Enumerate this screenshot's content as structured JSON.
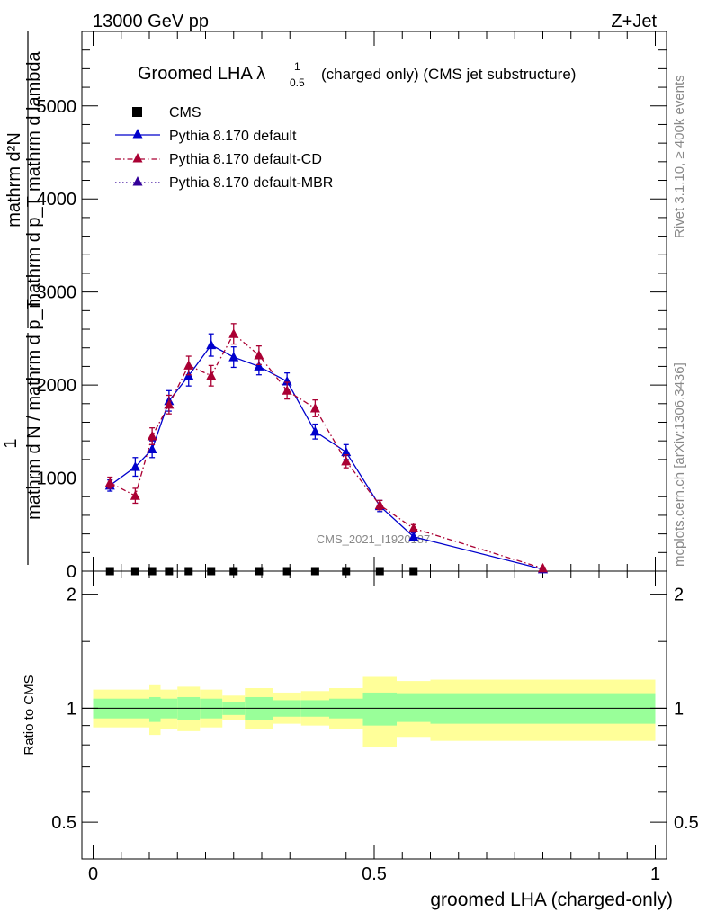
{
  "header": {
    "left": "13000 GeV pp",
    "right": "Z+Jet"
  },
  "title": {
    "main": "Groomed LHA λ",
    "sup": "1",
    "sub": "0.5",
    "rest": "(charged only) (CMS jet substructure)"
  },
  "side_labels": {
    "rivet": "Rivet 3.1.10, ≥ 400k events",
    "mcplots": "mcplots.cern.ch [arXiv:1306.3436]"
  },
  "watermark": "CMS_2021_I1920187",
  "axes": {
    "ylabel_top": "mathrm d²N",
    "ylabel_top2": "mathrm d p_T mathrm d lambda",
    "ylabel_one": "1",
    "ylabel_bottom": "mathrm d N / mathrm d p_T",
    "yticks": [
      "0",
      "1000",
      "2000",
      "3000",
      "4000",
      "5000"
    ],
    "ratio_ylabel": "Ratio to CMS",
    "ratio_yticks": [
      "0.5",
      "1",
      "2"
    ],
    "xticks": [
      "0",
      "0.5",
      "1"
    ],
    "xlabel": "groomed LHA (charged-only)"
  },
  "legend": [
    {
      "name": "CMS",
      "style": "square"
    },
    {
      "name": "Pythia 8.170 default",
      "style": "solid"
    },
    {
      "name": "Pythia 8.170 default-CD",
      "style": "dashdot"
    },
    {
      "name": "Pythia 8.170 default-MBR",
      "style": "dotted"
    }
  ],
  "chart_data": {
    "type": "line",
    "title": "Groomed LHA λ^1_0.5 (charged only) (CMS jet substructure)",
    "xlabel": "groomed LHA (charged-only)",
    "ylabel": "1 / (mathrm d N / mathrm d p_T) · mathrm d²N / (mathrm d p_T mathrm d lambda)",
    "xlim": [
      -0.02,
      1.02
    ],
    "ylim": [
      0,
      5800
    ],
    "ratio_ylim": [
      0.4,
      2.3
    ],
    "colors": {
      "default": "#0000cc",
      "cd": "#aa0033",
      "mbr": "#330099",
      "band_inner": "#99ff99",
      "band_outer": "#ffff99"
    },
    "cms": {
      "x": [
        0.03,
        0.075,
        0.105,
        0.135,
        0.17,
        0.21,
        0.25,
        0.295,
        0.345,
        0.395,
        0.45,
        0.51,
        0.57
      ],
      "y": [
        0,
        0,
        0,
        0,
        0,
        0,
        0,
        0,
        0,
        0,
        0,
        0,
        0
      ]
    },
    "series": [
      {
        "name": "Pythia 8.170 default",
        "style": "solid",
        "x": [
          0.03,
          0.075,
          0.105,
          0.135,
          0.17,
          0.21,
          0.25,
          0.295,
          0.345,
          0.395,
          0.45,
          0.51,
          0.57,
          0.8
        ],
        "y": [
          920,
          1120,
          1310,
          1830,
          2100,
          2430,
          2300,
          2200,
          2040,
          1500,
          1280,
          700,
          370,
          20
        ],
        "err": [
          60,
          100,
          90,
          110,
          110,
          120,
          110,
          90,
          90,
          80,
          80,
          60,
          40,
          10
        ]
      },
      {
        "name": "Pythia 8.170 default-CD",
        "style": "dashdot",
        "x": [
          0.03,
          0.075,
          0.105,
          0.135,
          0.17,
          0.21,
          0.25,
          0.295,
          0.345,
          0.395,
          0.45,
          0.51,
          0.57,
          0.8
        ],
        "y": [
          950,
          810,
          1450,
          1790,
          2210,
          2100,
          2550,
          2320,
          1940,
          1750,
          1180,
          710,
          460,
          30
        ],
        "err": [
          60,
          80,
          90,
          100,
          100,
          110,
          110,
          100,
          90,
          90,
          70,
          50,
          40,
          10
        ]
      },
      {
        "name": "Pythia 8.170 default-MBR",
        "style": "dotted",
        "x": [],
        "y": [],
        "err": []
      }
    ],
    "ratio_bands": {
      "edges": [
        0.0,
        0.05,
        0.1,
        0.12,
        0.15,
        0.19,
        0.23,
        0.27,
        0.32,
        0.37,
        0.42,
        0.48,
        0.54,
        0.6,
        1.0
      ],
      "inner_up": [
        1.06,
        1.06,
        1.07,
        1.06,
        1.07,
        1.06,
        1.04,
        1.07,
        1.05,
        1.05,
        1.06,
        1.1,
        1.09,
        1.09
      ],
      "inner_down": [
        0.94,
        0.94,
        0.92,
        0.94,
        0.93,
        0.94,
        0.96,
        0.93,
        0.95,
        0.95,
        0.94,
        0.9,
        0.92,
        0.91
      ],
      "outer_up": [
        1.12,
        1.12,
        1.15,
        1.12,
        1.14,
        1.12,
        1.08,
        1.13,
        1.1,
        1.11,
        1.13,
        1.21,
        1.18,
        1.19
      ],
      "outer_down": [
        0.89,
        0.89,
        0.85,
        0.88,
        0.87,
        0.89,
        0.93,
        0.88,
        0.91,
        0.9,
        0.88,
        0.79,
        0.84,
        0.82
      ]
    }
  }
}
